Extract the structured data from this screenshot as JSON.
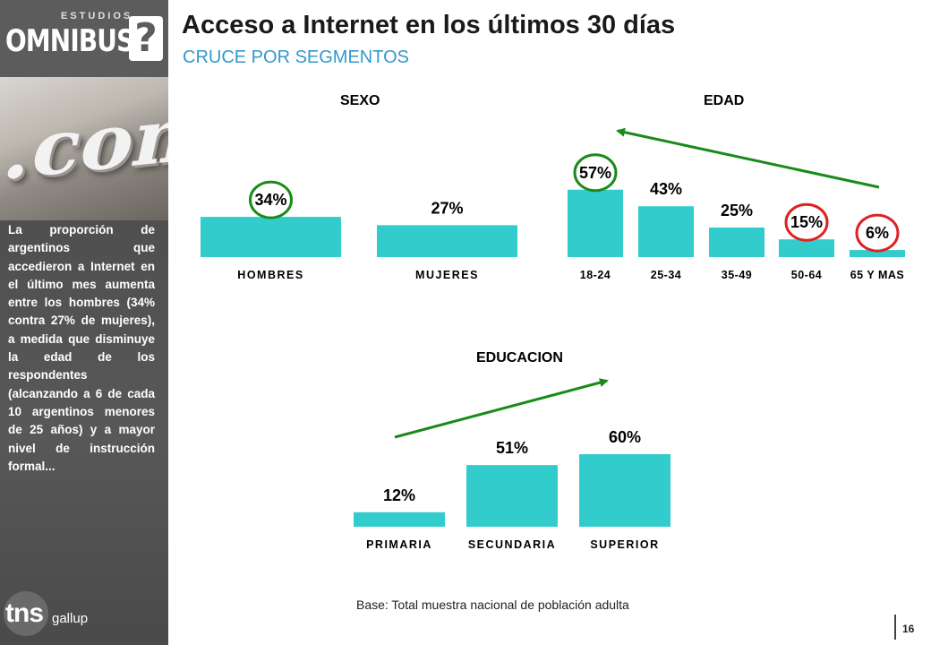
{
  "brand": {
    "estudios": "ESTUDIOS",
    "omnibus": "OMNIBUS",
    "q_mark": "?",
    "photo_text": ".com",
    "tns": "tns",
    "gallup": "gallup"
  },
  "header": {
    "title": "Acceso a Internet en los últimos 30 días",
    "subtitle": "CRUCE POR SEGMENTOS"
  },
  "sidebar": {
    "summary": "La proporción de argentinos que accedieron a Internet en el último mes aumenta entre los hombres (34% contra 27% de mujeres), a medida que disminuye la edad de los respondentes (alcanzando a 6 de cada 10 argentinos menores de 25 años) y a mayor nivel de instrucción formal..."
  },
  "colors": {
    "bar": "#33cccc",
    "highlight_green": "#1a8a1a",
    "highlight_red": "#dd2222",
    "arrow": "#1a8a1a",
    "subtitle": "#3399cc"
  },
  "chart_data": [
    {
      "type": "bar",
      "title": "SEXO",
      "categories": [
        "HOMBRES",
        "MUJERES"
      ],
      "values": [
        34,
        27
      ],
      "labels": [
        "34%",
        "27%"
      ],
      "highlight": {
        "HOMBRES": "green"
      }
    },
    {
      "type": "bar",
      "title": "EDAD",
      "categories": [
        "18-24",
        "25-34",
        "35-49",
        "50-64",
        "65 Y MAS"
      ],
      "values": [
        57,
        43,
        25,
        15,
        6
      ],
      "labels": [
        "57%",
        "43%",
        "25%",
        "15%",
        "6%"
      ],
      "highlight": {
        "18-24": "green",
        "50-64": "red",
        "65 Y MAS": "red"
      },
      "trend_arrow": "from 65 Y MAS up to 18-24"
    },
    {
      "type": "bar",
      "title": "EDUCACION",
      "categories": [
        "PRIMARIA",
        "SECUNDARIA",
        "SUPERIOR"
      ],
      "values": [
        12,
        51,
        60
      ],
      "labels": [
        "12%",
        "51%",
        "60%"
      ],
      "trend_arrow": "from PRIMARIA up to SUPERIOR"
    }
  ],
  "footer": {
    "base": "Base: Total muestra nacional de población adulta",
    "page": "16"
  }
}
